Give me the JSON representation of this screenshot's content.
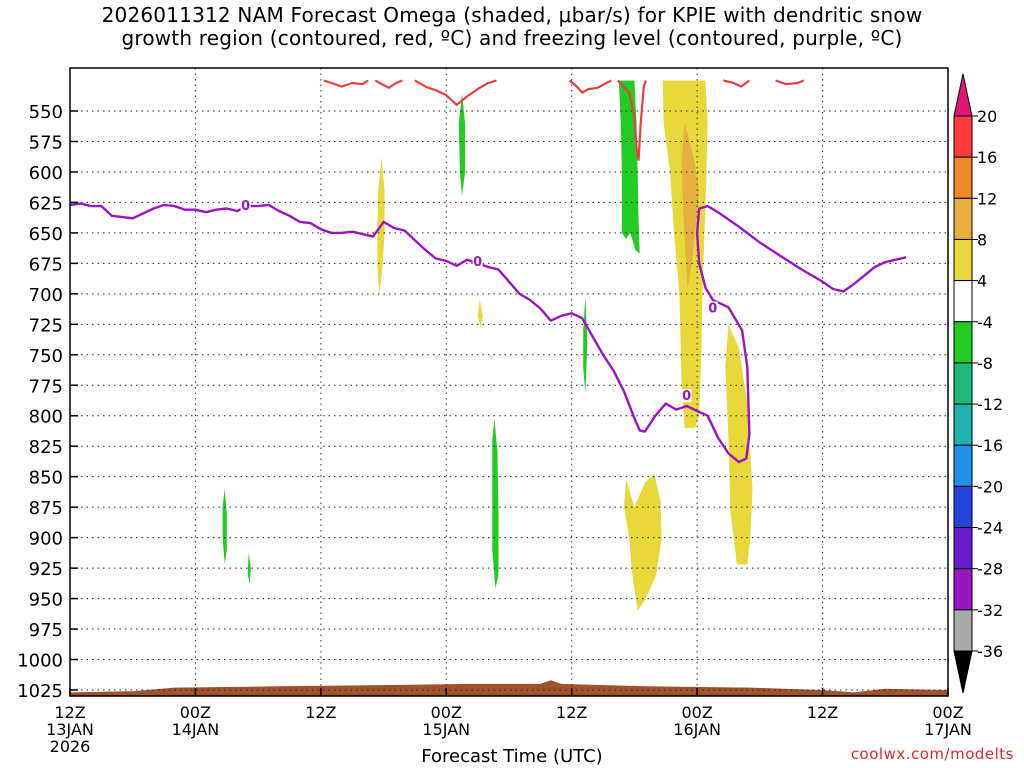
{
  "title_line1": "2026011312 NAM Forecast Omega (shaded, μbar/s) for KPIE with dendritic snow",
  "title_line2": "growth region (contoured, red, ºC) and freezing level (contoured, purple, ºC)",
  "credit": "coolwx.com/modelts",
  "chart_data": {
    "type": "heatmap",
    "xlabel": "Forecast Time (UTC)",
    "ylabel": "",
    "x_hours_range": [
      0,
      84
    ],
    "y_pressure_range": [
      1040,
      525
    ],
    "y_ticks": [
      550,
      575,
      600,
      625,
      650,
      675,
      700,
      725,
      750,
      775,
      800,
      825,
      850,
      875,
      900,
      925,
      950,
      975,
      1000,
      1025
    ],
    "x_ticks": [
      {
        "hour": 0,
        "line1": "12Z",
        "line2": "13JAN",
        "line3": "2026"
      },
      {
        "hour": 12,
        "line1": "00Z",
        "line2": "14JAN",
        "line3": ""
      },
      {
        "hour": 24,
        "line1": "12Z",
        "line2": "",
        "line3": ""
      },
      {
        "hour": 36,
        "line1": "00Z",
        "line2": "15JAN",
        "line3": ""
      },
      {
        "hour": 48,
        "line1": "12Z",
        "line2": "",
        "line3": ""
      },
      {
        "hour": 60,
        "line1": "00Z",
        "line2": "16JAN",
        "line3": ""
      },
      {
        "hour": 72,
        "line1": "12Z",
        "line2": "",
        "line3": ""
      },
      {
        "hour": 84,
        "line1": "00Z",
        "line2": "17JAN",
        "line3": ""
      }
    ],
    "colorbar": {
      "labels": [
        "20",
        "16",
        "12",
        "8",
        "4",
        "-4",
        "-8",
        "-12",
        "-16",
        "-20",
        "-24",
        "-28",
        "-32",
        "-36"
      ],
      "colors": [
        "#ff3a3a",
        "#ee8a2a",
        "#e6b040",
        "#e8d83a",
        "#ffffff",
        "#22cc22",
        "#20b87a",
        "#20b0b0",
        "#2090e8",
        "#2244dd",
        "#6a1ad0",
        "#9a14c4",
        "#aaaaaa"
      ],
      "top_arrow_color": "#e0157a",
      "bottom_arrow_color": "#000000"
    },
    "shaded_regions": [
      {
        "value": 4,
        "color": "#e8d83a",
        "points": [
          [
            29.8,
            588
          ],
          [
            30.1,
            615
          ],
          [
            30.1,
            650
          ],
          [
            29.9,
            678
          ],
          [
            29.6,
            700
          ],
          [
            29.4,
            678
          ],
          [
            29.4,
            650
          ],
          [
            29.5,
            615
          ]
        ]
      },
      {
        "value": 4,
        "color": "#e8d83a",
        "points": [
          [
            39.2,
            705
          ],
          [
            39.5,
            718
          ],
          [
            39.3,
            728
          ],
          [
            39.0,
            718
          ]
        ]
      },
      {
        "value": 4,
        "color": "#e8d83a",
        "points": [
          [
            56.7,
            525
          ],
          [
            60.8,
            525
          ],
          [
            61.0,
            560
          ],
          [
            60.9,
            600
          ],
          [
            60.7,
            650
          ],
          [
            60.5,
            700
          ],
          [
            60.4,
            750
          ],
          [
            60.2,
            800
          ],
          [
            59.8,
            810
          ],
          [
            58.8,
            810
          ],
          [
            58.5,
            770
          ],
          [
            58.3,
            700
          ],
          [
            57.8,
            650
          ],
          [
            57.4,
            600
          ],
          [
            56.8,
            560
          ]
        ]
      },
      {
        "value": 8,
        "color": "#e6b040",
        "points": [
          [
            58.8,
            560
          ],
          [
            59.6,
            585
          ],
          [
            60.2,
            615
          ],
          [
            59.8,
            650
          ],
          [
            59.5,
            675
          ],
          [
            59.1,
            695
          ],
          [
            58.9,
            670
          ],
          [
            58.6,
            620
          ],
          [
            58.5,
            590
          ]
        ]
      },
      {
        "value": 4,
        "color": "#e8d83a",
        "points": [
          [
            53.2,
            852
          ],
          [
            54.0,
            875
          ],
          [
            55.0,
            855
          ],
          [
            55.9,
            848
          ],
          [
            56.5,
            870
          ],
          [
            56.6,
            900
          ],
          [
            56.1,
            930
          ],
          [
            55.1,
            950
          ],
          [
            54.3,
            960
          ],
          [
            53.8,
            930
          ],
          [
            53.5,
            900
          ],
          [
            53.0,
            875
          ]
        ]
      },
      {
        "value": 4,
        "color": "#e8d83a",
        "points": [
          [
            63.0,
            725
          ],
          [
            64.0,
            745
          ],
          [
            64.8,
            790
          ],
          [
            65.3,
            860
          ],
          [
            65.1,
            900
          ],
          [
            64.8,
            922
          ],
          [
            63.8,
            922
          ],
          [
            63.2,
            880
          ],
          [
            63.0,
            820
          ],
          [
            62.7,
            760
          ]
        ]
      },
      {
        "value": -4,
        "color": "#22cc22",
        "points": [
          [
            52.5,
            525
          ],
          [
            54.0,
            525
          ],
          [
            54.2,
            560
          ],
          [
            54.3,
            600
          ],
          [
            54.4,
            640
          ],
          [
            54.5,
            667
          ],
          [
            54.1,
            664
          ],
          [
            53.6,
            650
          ],
          [
            53.2,
            655
          ],
          [
            52.8,
            650
          ],
          [
            52.8,
            600
          ],
          [
            52.7,
            560
          ]
        ]
      },
      {
        "value": -4,
        "color": "#22cc22",
        "points": [
          [
            37.5,
            536
          ],
          [
            37.8,
            560
          ],
          [
            37.8,
            600
          ],
          [
            37.5,
            620
          ],
          [
            37.3,
            600
          ],
          [
            37.2,
            560
          ]
        ]
      },
      {
        "value": -4,
        "color": "#22cc22",
        "points": [
          [
            40.6,
            802
          ],
          [
            40.9,
            830
          ],
          [
            41.0,
            880
          ],
          [
            41.0,
            930
          ],
          [
            40.7,
            942
          ],
          [
            40.4,
            910
          ],
          [
            40.4,
            860
          ],
          [
            40.4,
            820
          ]
        ]
      },
      {
        "value": -4,
        "color": "#22cc22",
        "points": [
          [
            49.3,
            702
          ],
          [
            49.5,
            740
          ],
          [
            49.3,
            782
          ],
          [
            49.1,
            760
          ],
          [
            49.1,
            730
          ]
        ]
      },
      {
        "value": -4,
        "color": "#22cc22",
        "points": [
          [
            14.8,
            860
          ],
          [
            15.0,
            880
          ],
          [
            15.0,
            910
          ],
          [
            14.8,
            922
          ],
          [
            14.6,
            900
          ],
          [
            14.6,
            875
          ]
        ]
      },
      {
        "value": -4,
        "color": "#22cc22",
        "points": [
          [
            17.1,
            912
          ],
          [
            17.3,
            925
          ],
          [
            17.2,
            938
          ],
          [
            17.0,
            930
          ]
        ]
      }
    ],
    "freezing_level_line": {
      "label": "0",
      "color": "#9a14c4",
      "points": [
        [
          0,
          627
        ],
        [
          1,
          626
        ],
        [
          2,
          628
        ],
        [
          3,
          628
        ],
        [
          4,
          636
        ],
        [
          6,
          638
        ],
        [
          8,
          630
        ],
        [
          9,
          627
        ],
        [
          10,
          628
        ],
        [
          11,
          631
        ],
        [
          12,
          631
        ],
        [
          13,
          633
        ],
        [
          14,
          631
        ],
        [
          15,
          630
        ],
        [
          16,
          632
        ],
        [
          17,
          628
        ],
        [
          18,
          628
        ],
        [
          19,
          627
        ],
        [
          20,
          632
        ],
        [
          21,
          636
        ],
        [
          22,
          641
        ],
        [
          23,
          642
        ],
        [
          24,
          647
        ],
        [
          25,
          650
        ],
        [
          26,
          650
        ],
        [
          27,
          649
        ],
        [
          28,
          651
        ],
        [
          29,
          653
        ],
        [
          30,
          641
        ],
        [
          31,
          646
        ],
        [
          32,
          648
        ],
        [
          33,
          656
        ],
        [
          34,
          664
        ],
        [
          35,
          671
        ],
        [
          36,
          673
        ],
        [
          37,
          677
        ],
        [
          38,
          672
        ],
        [
          39,
          675
        ],
        [
          40,
          678
        ],
        [
          41,
          680
        ],
        [
          42,
          690
        ],
        [
          43,
          700
        ],
        [
          44,
          705
        ],
        [
          45,
          712
        ],
        [
          46,
          722
        ],
        [
          47,
          718
        ],
        [
          48,
          716
        ],
        [
          49,
          720
        ],
        [
          50,
          735
        ],
        [
          51,
          750
        ],
        [
          52,
          763
        ],
        [
          53,
          780
        ],
        [
          54,
          802
        ],
        [
          54.5,
          812
        ],
        [
          55,
          813
        ],
        [
          56,
          800
        ],
        [
          57,
          790
        ],
        [
          58,
          795
        ],
        [
          59,
          792
        ],
        [
          60,
          796
        ],
        [
          61,
          800
        ],
        [
          62,
          818
        ],
        [
          63,
          831
        ],
        [
          64,
          838
        ],
        [
          64.7,
          835
        ],
        [
          65,
          815
        ],
        [
          64.8,
          760
        ],
        [
          64.3,
          730
        ],
        [
          63,
          711
        ],
        [
          61.5,
          705
        ],
        [
          60.8,
          695
        ],
        [
          60.2,
          675
        ],
        [
          60.0,
          650
        ],
        [
          60.2,
          630
        ],
        [
          61,
          628
        ],
        [
          62,
          633
        ],
        [
          64,
          645
        ],
        [
          66,
          658
        ],
        [
          68,
          669
        ],
        [
          70,
          680
        ],
        [
          72,
          690
        ],
        [
          73,
          696
        ],
        [
          74,
          698
        ],
        [
          75,
          692
        ],
        [
          76,
          685
        ],
        [
          77,
          678
        ],
        [
          78,
          674
        ],
        [
          79,
          672
        ],
        [
          80,
          670
        ]
      ]
    },
    "freezing_level_labels": [
      [
        16.8,
        628
      ],
      [
        39,
        674
      ],
      [
        61.5,
        712
      ],
      [
        59.0,
        784
      ]
    ],
    "dgz_lines": [
      {
        "color": "#e84040",
        "points": [
          [
            24.3,
            525
          ],
          [
            26,
            530
          ],
          [
            27,
            527
          ],
          [
            28,
            528
          ],
          [
            28.5,
            525
          ]
        ]
      },
      {
        "color": "#e84040",
        "points": [
          [
            29.2,
            525
          ],
          [
            30.5,
            531
          ],
          [
            31.2,
            527
          ],
          [
            31.8,
            525
          ]
        ]
      },
      {
        "color": "#e84040",
        "points": [
          [
            33,
            525
          ],
          [
            34,
            530
          ],
          [
            35,
            533
          ],
          [
            36,
            537
          ],
          [
            37,
            545
          ],
          [
            38,
            538
          ],
          [
            39,
            532
          ],
          [
            40,
            527
          ],
          [
            40.8,
            525
          ]
        ]
      },
      {
        "color": "#e84040",
        "points": [
          [
            47.8,
            525
          ],
          [
            48.5,
            530
          ],
          [
            49.0,
            535
          ],
          [
            49.6,
            532
          ],
          [
            50.5,
            531
          ],
          [
            51.3,
            527
          ],
          [
            51.8,
            525
          ]
        ]
      },
      {
        "color": "#e84040",
        "points": [
          [
            52.4,
            525
          ],
          [
            53.5,
            535
          ],
          [
            54.0,
            555
          ],
          [
            54.2,
            580
          ],
          [
            54.4,
            590
          ],
          [
            54.6,
            560
          ],
          [
            54.9,
            530
          ],
          [
            55.1,
            525
          ]
        ]
      },
      {
        "color": "#e84040",
        "points": [
          [
            62.5,
            525
          ],
          [
            63.5,
            527
          ],
          [
            64.2,
            530
          ],
          [
            65.0,
            525
          ]
        ]
      },
      {
        "color": "#e84040",
        "points": [
          [
            67.5,
            525
          ],
          [
            68.5,
            528
          ],
          [
            69.6,
            527
          ],
          [
            70.2,
            525
          ]
        ]
      }
    ],
    "terrain": {
      "color": "#a0522d",
      "top_pressure": [
        [
          0,
          1027
        ],
        [
          6,
          1026
        ],
        [
          10,
          1023
        ],
        [
          20,
          1022
        ],
        [
          30,
          1021
        ],
        [
          38,
          1020
        ],
        [
          45,
          1020
        ],
        [
          46,
          1017
        ],
        [
          47,
          1020
        ],
        [
          55,
          1022
        ],
        [
          65,
          1023
        ],
        [
          72,
          1025
        ],
        [
          75,
          1027
        ],
        [
          78,
          1024
        ],
        [
          84,
          1025
        ]
      ],
      "bottom_pressure": 1040
    }
  }
}
